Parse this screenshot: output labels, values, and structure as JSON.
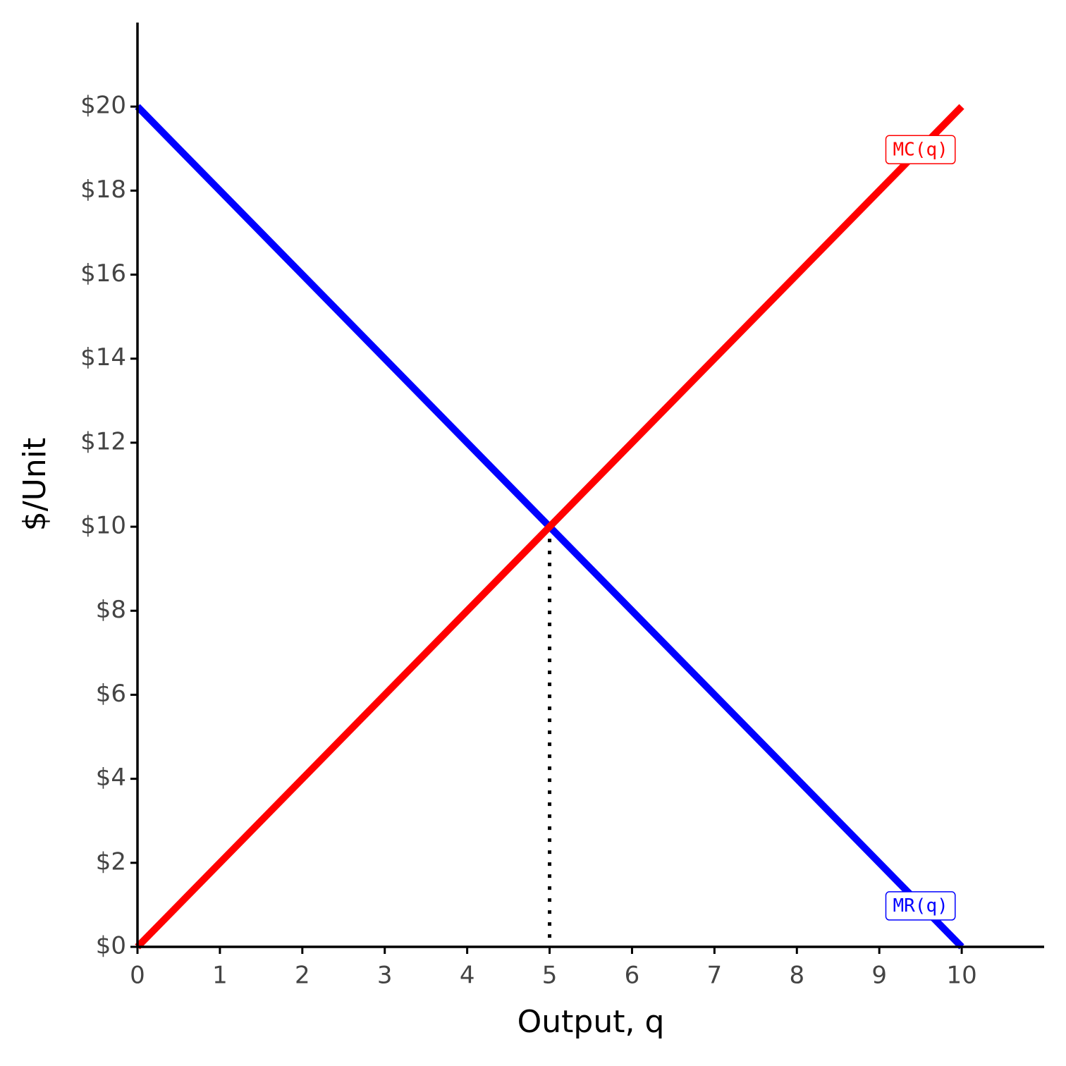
{
  "chart_data": {
    "type": "line",
    "x_label": "Output, q",
    "y_label": "$/Unit",
    "x": [
      0,
      10
    ],
    "series": [
      {
        "name": "MR(q)",
        "color": "#0000ff",
        "values": [
          20,
          0
        ]
      },
      {
        "name": "MC(q)",
        "color": "#ff0000",
        "values": [
          0,
          20
        ]
      }
    ],
    "guide": {
      "x": 5,
      "y": 10
    },
    "xlim": [
      0,
      11
    ],
    "ylim": [
      0,
      22
    ],
    "xticks": [
      0,
      1,
      2,
      3,
      4,
      5,
      6,
      7,
      8,
      9,
      10
    ],
    "yticks": [
      {
        "value": 0,
        "label": "$0"
      },
      {
        "value": 2,
        "label": "$2"
      },
      {
        "value": 4,
        "label": "$4"
      },
      {
        "value": 6,
        "label": "$6"
      },
      {
        "value": 8,
        "label": "$8"
      },
      {
        "value": 10,
        "label": "$10"
      },
      {
        "value": 12,
        "label": "$12"
      },
      {
        "value": 14,
        "label": "$14"
      },
      {
        "value": 16,
        "label": "$16"
      },
      {
        "value": 18,
        "label": "$18"
      },
      {
        "value": 20,
        "label": "$20"
      }
    ],
    "grid": false
  }
}
